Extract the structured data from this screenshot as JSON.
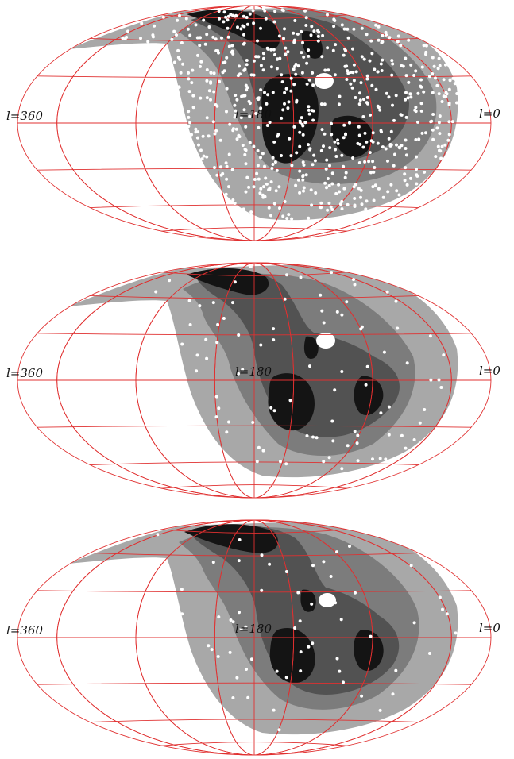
{
  "colors": {
    "grid": "#e03030",
    "background": "#ffffff",
    "level_1": "#a8a8a8",
    "level_2": "#7c7c7c",
    "level_3": "#525252",
    "level_4": "#141414",
    "points": "#ffffff"
  },
  "panels": [
    {
      "id": "top",
      "labels": {
        "left": "l=360",
        "center": "l=180",
        "right": "l=0"
      }
    },
    {
      "id": "middle",
      "labels": {
        "left": "l=360",
        "center": "l=180",
        "right": "l=0"
      }
    },
    {
      "id": "bottom",
      "labels": {
        "left": "l=360",
        "center": "l=180",
        "right": "l=0"
      }
    }
  ]
}
